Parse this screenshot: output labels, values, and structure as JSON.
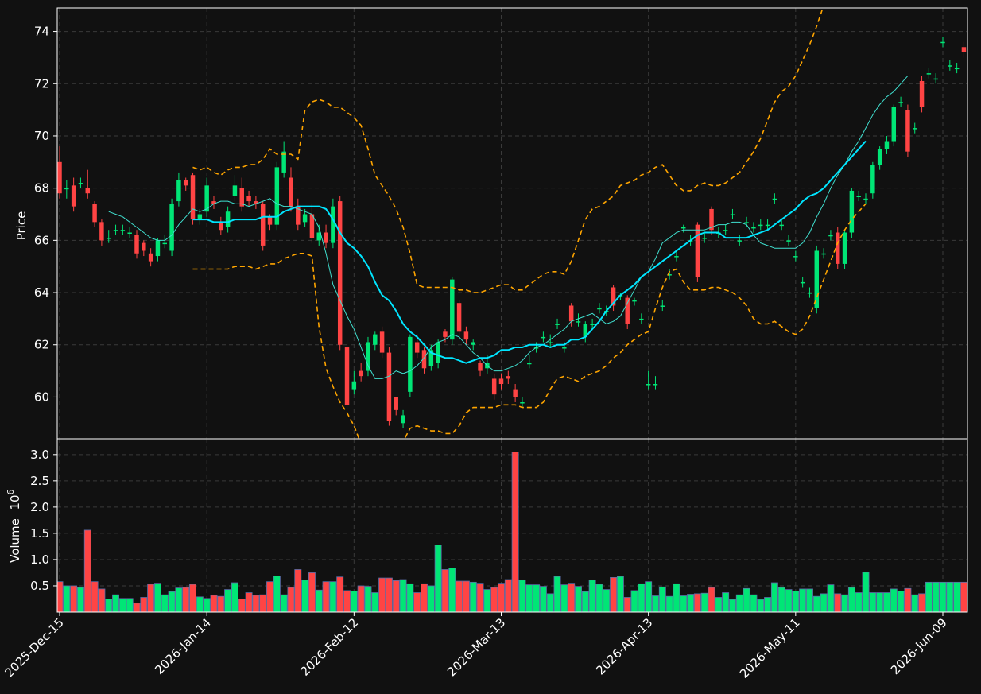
{
  "colors": {
    "background": "#111111",
    "frame": "#ffffff",
    "grid": "#3a3a3a",
    "up": "#00e676",
    "down": "#ff4444",
    "volume_edge": "#5a6ea8",
    "sma_fast": "#40e0d0",
    "sma_slow": "#00e5ff",
    "bollinger": "#ffa500",
    "text": "#ffffff"
  },
  "chart_data": {
    "type": "candlestick",
    "title": "",
    "price_panel": {
      "ylabel": "Price",
      "ylim": [
        58.4,
        74.9
      ],
      "yticks": [
        "60",
        "62",
        "64",
        "66",
        "68",
        "70",
        "72",
        "74"
      ],
      "grid": true
    },
    "volume_panel": {
      "ylabel": "Volume",
      "ylabel_exponent": "10",
      "ylabel_power": "6",
      "ylim": [
        0,
        3.3
      ],
      "yticks": [
        "0.5",
        "1.0",
        "1.5",
        "2.0",
        "2.5",
        "3.0"
      ],
      "grid": true
    },
    "x_ticks": [
      {
        "index": 0,
        "label": "2025-Dec-15"
      },
      {
        "index": 21,
        "label": "2026-Jan-14"
      },
      {
        "index": 42,
        "label": "2026-Feb-12"
      },
      {
        "index": 63,
        "label": "2026-Mar-13"
      },
      {
        "index": 84,
        "label": "2026-Apr-13"
      },
      {
        "index": 105,
        "label": "2026-May-11"
      },
      {
        "index": 126,
        "label": "2026-Jun-09"
      }
    ],
    "n_bars": 130,
    "close": [
      67.8,
      68.0,
      67.3,
      68.2,
      67.8,
      66.7,
      66.0,
      66.1,
      66.4,
      66.4,
      66.3,
      65.5,
      65.6,
      65.2,
      66.0,
      65.9,
      67.4,
      68.3,
      68.1,
      66.8,
      67.0,
      68.1,
      67.4,
      66.4,
      67.1,
      68.1,
      67.3,
      67.5,
      67.4,
      65.8,
      66.6,
      68.8,
      69.4,
      67.3,
      66.6,
      67.0,
      66.1,
      66.3,
      65.9,
      67.3,
      62.0,
      59.7,
      60.6,
      60.8,
      62.1,
      62.4,
      61.7,
      59.1,
      59.5,
      59.3,
      62.3,
      61.7,
      61.1,
      61.8,
      62.1,
      62.3,
      64.5,
      62.5,
      62.2,
      62.1,
      61.0,
      61.3,
      60.1,
      60.5,
      60.7,
      60.0,
      59.8,
      61.3,
      61.9,
      62.3,
      62.1,
      62.8,
      61.9,
      62.9,
      62.9,
      62.8,
      62.8,
      63.4,
      63.3,
      63.5,
      63.9,
      62.8,
      63.7,
      63.0,
      60.5,
      60.5,
      63.5,
      64.7,
      65.4,
      66.5,
      66.0,
      64.6,
      66.1,
      66.4,
      66.3,
      66.4,
      67.0,
      66.0,
      66.7,
      66.5,
      66.6,
      66.6,
      67.6,
      66.6,
      66.0,
      65.4,
      64.4,
      64.0,
      65.6,
      65.5,
      66.2,
      65.1,
      66.3,
      67.9,
      67.7,
      67.6,
      68.9,
      69.5,
      69.8,
      71.1,
      71.3,
      69.4,
      70.3,
      71.1,
      72.4,
      72.2,
      73.6,
      72.7,
      72.6,
      73.2
    ],
    "open": [
      69.0,
      68.0,
      68.1,
      68.2,
      68.0,
      67.4,
      66.7,
      66.1,
      66.4,
      66.4,
      66.3,
      66.2,
      65.9,
      65.5,
      65.4,
      65.9,
      65.6,
      67.5,
      68.3,
      68.5,
      66.8,
      67.1,
      67.5,
      66.7,
      66.5,
      67.7,
      68.0,
      67.7,
      67.5,
      67.4,
      66.9,
      66.6,
      68.6,
      68.4,
      67.3,
      66.7,
      67.0,
      66.0,
      66.3,
      65.9,
      67.5,
      61.9,
      60.3,
      61.0,
      61.0,
      62.0,
      62.5,
      61.7,
      60.0,
      59.0,
      60.2,
      62.1,
      61.8,
      61.2,
      61.3,
      62.5,
      62.2,
      63.6,
      62.5,
      62.0,
      61.3,
      61.1,
      60.7,
      60.7,
      60.8,
      60.3,
      59.8,
      61.3,
      61.9,
      62.3,
      62.1,
      62.8,
      61.9,
      63.5,
      62.9,
      62.3,
      62.8,
      63.4,
      63.3,
      64.2,
      63.9,
      63.8,
      63.7,
      63.0,
      60.5,
      60.5,
      63.5,
      64.7,
      65.4,
      66.5,
      66.0,
      66.6,
      66.1,
      67.2,
      66.3,
      66.4,
      67.0,
      66.0,
      66.7,
      66.5,
      66.6,
      66.6,
      67.6,
      66.6,
      66.0,
      65.4,
      64.4,
      64.0,
      63.4,
      65.5,
      66.2,
      66.3,
      65.1,
      66.3,
      67.7,
      67.6,
      67.8,
      68.9,
      69.5,
      69.8,
      71.3,
      71.0,
      70.3,
      72.1,
      72.4,
      72.2,
      73.6,
      72.7,
      72.6,
      73.4
    ],
    "high": [
      69.6,
      68.3,
      68.4,
      68.4,
      68.7,
      67.5,
      66.8,
      66.4,
      66.6,
      66.6,
      66.5,
      66.4,
      66.0,
      65.7,
      66.1,
      66.2,
      67.6,
      68.6,
      68.4,
      68.6,
      67.2,
      68.4,
      67.7,
      66.9,
      67.3,
      68.5,
      68.4,
      67.9,
      67.7,
      67.5,
      67.0,
      69.0,
      69.8,
      68.8,
      67.6,
      67.2,
      67.4,
      66.6,
      66.6,
      67.6,
      67.7,
      62.2,
      61.0,
      61.3,
      62.3,
      62.5,
      62.7,
      61.9,
      60.0,
      59.5,
      62.4,
      62.4,
      61.9,
      62.0,
      62.2,
      62.6,
      64.6,
      63.7,
      62.7,
      62.2,
      61.4,
      61.6,
      60.9,
      60.9,
      61.0,
      60.5,
      60.0,
      61.6,
      62.1,
      62.5,
      62.4,
      63.0,
      62.1,
      63.6,
      63.2,
      62.9,
      63.0,
      63.6,
      63.5,
      64.3,
      64.0,
      63.9,
      63.8,
      63.2,
      61.0,
      60.8,
      63.7,
      64.9,
      65.6,
      66.6,
      66.2,
      66.7,
      66.3,
      67.3,
      66.5,
      66.6,
      67.2,
      66.2,
      66.9,
      66.7,
      66.8,
      66.8,
      67.8,
      66.8,
      66.2,
      65.6,
      64.6,
      64.2,
      65.8,
      65.7,
      66.4,
      66.5,
      66.4,
      68.0,
      67.9,
      67.8,
      69.0,
      69.6,
      70.0,
      71.2,
      71.5,
      71.2,
      70.5,
      72.3,
      72.6,
      72.4,
      73.8,
      72.9,
      72.8,
      73.6
    ],
    "low": [
      67.6,
      67.6,
      67.1,
      68.0,
      67.6,
      66.5,
      65.8,
      65.9,
      66.2,
      66.2,
      66.1,
      65.3,
      65.4,
      65.0,
      65.2,
      65.7,
      65.4,
      67.3,
      67.9,
      66.6,
      66.6,
      66.9,
      67.2,
      66.2,
      66.3,
      67.5,
      67.1,
      67.3,
      67.2,
      65.6,
      66.4,
      66.4,
      68.4,
      67.1,
      66.4,
      66.5,
      65.9,
      65.8,
      65.7,
      65.7,
      61.8,
      59.5,
      60.1,
      60.6,
      60.8,
      61.8,
      61.5,
      58.9,
      59.3,
      58.8,
      60.0,
      61.5,
      60.9,
      61.0,
      61.1,
      62.1,
      62.0,
      62.3,
      62.0,
      61.8,
      60.8,
      60.9,
      59.9,
      60.3,
      60.5,
      59.8,
      59.6,
      61.1,
      61.7,
      62.1,
      61.9,
      62.6,
      61.7,
      62.7,
      62.7,
      62.1,
      62.6,
      63.2,
      63.1,
      63.3,
      63.7,
      62.6,
      63.5,
      62.8,
      60.3,
      60.3,
      63.3,
      64.5,
      65.2,
      66.3,
      65.8,
      64.4,
      65.9,
      66.2,
      66.1,
      66.2,
      66.8,
      65.8,
      66.5,
      66.3,
      66.4,
      66.4,
      67.4,
      66.4,
      65.8,
      65.2,
      64.2,
      63.8,
      63.2,
      65.3,
      66.0,
      64.9,
      64.9,
      66.1,
      67.5,
      67.4,
      67.6,
      68.7,
      69.3,
      69.6,
      71.1,
      69.2,
      70.1,
      70.9,
      72.2,
      72.0,
      73.4,
      72.5,
      72.4,
      73.0
    ],
    "volume": [
      0.58,
      0.5,
      0.5,
      0.47,
      1.56,
      0.58,
      0.44,
      0.25,
      0.33,
      0.26,
      0.26,
      0.17,
      0.28,
      0.53,
      0.55,
      0.33,
      0.39,
      0.46,
      0.47,
      0.53,
      0.29,
      0.26,
      0.32,
      0.3,
      0.43,
      0.56,
      0.25,
      0.37,
      0.32,
      0.33,
      0.58,
      0.69,
      0.33,
      0.47,
      0.81,
      0.61,
      0.75,
      0.42,
      0.58,
      0.58,
      0.67,
      0.41,
      0.4,
      0.5,
      0.49,
      0.37,
      0.65,
      0.65,
      0.6,
      0.62,
      0.54,
      0.37,
      0.54,
      0.5,
      1.28,
      0.81,
      0.84,
      0.59,
      0.59,
      0.57,
      0.55,
      0.43,
      0.47,
      0.55,
      0.62,
      3.05,
      0.61,
      0.52,
      0.52,
      0.49,
      0.35,
      0.68,
      0.52,
      0.55,
      0.49,
      0.39,
      0.61,
      0.53,
      0.43,
      0.66,
      0.68,
      0.28,
      0.41,
      0.54,
      0.58,
      0.31,
      0.48,
      0.3,
      0.54,
      0.31,
      0.34,
      0.35,
      0.36,
      0.47,
      0.28,
      0.37,
      0.24,
      0.33,
      0.45,
      0.33,
      0.24,
      0.28,
      0.56,
      0.47,
      0.43,
      0.4,
      0.44,
      0.44,
      0.3,
      0.35,
      0.52,
      0.35,
      0.33,
      0.47,
      0.37,
      0.76,
      0.37,
      0.37,
      0.37,
      0.44,
      0.4,
      0.45,
      0.33,
      0.35,
      0.57,
      0.57,
      0.57,
      0.57,
      0.57,
      0.57
    ],
    "overlays": [
      {
        "kind": "sma_fast",
        "start": 7,
        "values": [
          67.1,
          67.0,
          66.9,
          66.7,
          66.5,
          66.3,
          66.1,
          66.0,
          66.0,
          66.2,
          66.6,
          66.9,
          67.2,
          67.1,
          67.2,
          67.4,
          67.5,
          67.5,
          67.4,
          67.4,
          67.3,
          67.4,
          67.5,
          67.6,
          67.4,
          67.3,
          67.3,
          67.2,
          67.1,
          67.0,
          66.5,
          65.5,
          64.3,
          63.7,
          63.1,
          62.6,
          61.9,
          61.2,
          60.7,
          60.7,
          60.8,
          61.0,
          60.9,
          61.0,
          61.2,
          61.5,
          61.9,
          62.1,
          62.2,
          62.4,
          62.3,
          62.0,
          61.7,
          61.5,
          61.2,
          61.0,
          61.0,
          61.1,
          61.2,
          61.4,
          61.7,
          61.9,
          62.0,
          62.2,
          62.4,
          62.6,
          62.9,
          63.0,
          63.1,
          63.2,
          63.0,
          62.8,
          62.9,
          63.1,
          63.6,
          64.1,
          64.6,
          64.8,
          65.3,
          65.9,
          66.1,
          66.3,
          66.4,
          66.4,
          66.4,
          66.4,
          66.5,
          66.6,
          66.6,
          66.7,
          66.7,
          66.6,
          66.2,
          65.9,
          65.8,
          65.7,
          65.7,
          65.7,
          65.7,
          65.9,
          66.3,
          66.9,
          67.4,
          68.0,
          68.5,
          68.9,
          69.4,
          69.8,
          70.3,
          70.8,
          71.2,
          71.5,
          71.7,
          72.0,
          72.3
        ]
      },
      {
        "kind": "sma_slow",
        "start": 19,
        "values": [
          66.8,
          66.8,
          66.8,
          66.7,
          66.7,
          66.7,
          66.8,
          66.8,
          66.8,
          66.8,
          66.9,
          66.9,
          66.9,
          67.1,
          67.2,
          67.3,
          67.3,
          67.3,
          67.3,
          67.2,
          66.8,
          66.3,
          65.9,
          65.7,
          65.4,
          65.0,
          64.4,
          63.9,
          63.7,
          63.3,
          62.8,
          62.5,
          62.3,
          62.0,
          61.7,
          61.6,
          61.5,
          61.5,
          61.4,
          61.3,
          61.4,
          61.5,
          61.5,
          61.6,
          61.8,
          61.8,
          61.9,
          61.9,
          62.0,
          62.0,
          62.0,
          61.9,
          62.0,
          62.0,
          62.2,
          62.2,
          62.3,
          62.6,
          62.9,
          63.3,
          63.6,
          63.9,
          64.1,
          64.3,
          64.6,
          64.8,
          65.0,
          65.2,
          65.4,
          65.6,
          65.8,
          66.0,
          66.2,
          66.3,
          66.3,
          66.3,
          66.1,
          66.1,
          66.1,
          66.1,
          66.2,
          66.3,
          66.4,
          66.6,
          66.8,
          67.0,
          67.2,
          67.5,
          67.7,
          67.8,
          68.0,
          68.3,
          68.6,
          68.9,
          69.2,
          69.5,
          69.8
        ]
      },
      {
        "kind": "bollinger_upper",
        "start": 19,
        "values": [
          68.8,
          68.7,
          68.8,
          68.6,
          68.5,
          68.7,
          68.8,
          68.8,
          68.9,
          68.9,
          69.1,
          69.5,
          69.3,
          69.3,
          69.3,
          69.1,
          71.0,
          71.3,
          71.4,
          71.3,
          71.1,
          71.1,
          70.9,
          70.7,
          70.4,
          69.5,
          68.5,
          68.1,
          67.7,
          67.2,
          66.5,
          65.5,
          64.3,
          64.2,
          64.2,
          64.2,
          64.2,
          64.2,
          64.1,
          64.1,
          64.0,
          64.0,
          64.1,
          64.2,
          64.3,
          64.3,
          64.1,
          64.1,
          64.3,
          64.5,
          64.7,
          64.8,
          64.8,
          64.7,
          65.2,
          66.0,
          66.8,
          67.2,
          67.3,
          67.5,
          67.7,
          68.1,
          68.2,
          68.3,
          68.5,
          68.6,
          68.8,
          68.9,
          68.5,
          68.1,
          67.9,
          67.9,
          68.1,
          68.2,
          68.1,
          68.1,
          68.2,
          68.4,
          68.6,
          69.0,
          69.4,
          69.9,
          70.6,
          71.3,
          71.7,
          71.9,
          72.3,
          72.9,
          73.5,
          74.2,
          75.0,
          75.8,
          76.5,
          77.0,
          77.5,
          78.0,
          78.5
        ]
      },
      {
        "kind": "bollinger_lower",
        "start": 19,
        "values": [
          64.9,
          64.9,
          64.9,
          64.9,
          64.9,
          64.9,
          65.0,
          65.0,
          65.0,
          64.9,
          65.0,
          65.1,
          65.1,
          65.3,
          65.4,
          65.5,
          65.5,
          65.4,
          62.7,
          61.1,
          60.4,
          59.8,
          59.4,
          58.9,
          58.2,
          57.5,
          57.0,
          56.8,
          57.2,
          57.6,
          58.3,
          58.8,
          58.9,
          58.8,
          58.7,
          58.7,
          58.6,
          58.6,
          58.9,
          59.4,
          59.6,
          59.6,
          59.6,
          59.6,
          59.7,
          59.7,
          59.7,
          59.6,
          59.6,
          59.6,
          59.8,
          60.3,
          60.7,
          60.8,
          60.7,
          60.6,
          60.8,
          60.9,
          61.0,
          61.2,
          61.5,
          61.7,
          62.0,
          62.2,
          62.4,
          62.5,
          63.4,
          64.2,
          64.8,
          64.9,
          64.4,
          64.1,
          64.1,
          64.1,
          64.2,
          64.2,
          64.1,
          64.0,
          63.8,
          63.5,
          63.0,
          62.8,
          62.8,
          62.9,
          62.7,
          62.5,
          62.4,
          62.6,
          63.1,
          63.8,
          64.5,
          65.2,
          65.9,
          66.4,
          66.8,
          67.1,
          67.4
        ]
      }
    ]
  }
}
